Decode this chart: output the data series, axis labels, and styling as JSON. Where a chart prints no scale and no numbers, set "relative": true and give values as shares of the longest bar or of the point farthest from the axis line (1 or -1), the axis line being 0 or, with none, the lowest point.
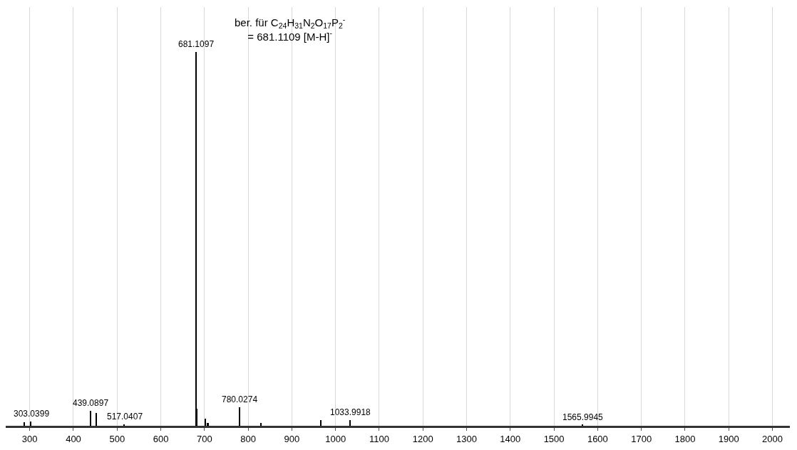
{
  "chart_data": {
    "type": "bar",
    "relative": true,
    "annotations": [
      "ber. für C$_{24}$H$_{31}$N$_{2}$O$_{17}$P$_{2}$$^{-}$\n= 681.1109 [M-H]$^{-}$",
      {
        "text": "303.0399",
        "x": 303.0399,
        "y": 0.012
      },
      {
        "text": "439.0897",
        "x": 439.0897,
        "y": 0.04
      },
      {
        "text": "517.0407",
        "x": 517.0407,
        "y": 0.004
      },
      {
        "text": "681.1097",
        "x": 681.1097,
        "y": 1
      },
      {
        "text": "780.0274",
        "x": 780.0274,
        "y": 0.05
      },
      {
        "text": "1033.9918",
        "x": 1033.9918,
        "y": 0.015
      },
      {
        "text": "1565.9945",
        "x": 1565.9945,
        "y": 0.002
      }
    ],
    "x": [
      288,
      303.0399,
      439.0897,
      453,
      517.0407,
      681.1097,
      682.1,
      703,
      708,
      780.0274,
      830,
      966,
      1033.9918,
      1565.9945
    ],
    "values": [
      0.01,
      0.012,
      0.04,
      0.035,
      0.004,
      1,
      0.046,
      0.02,
      0.008,
      0.05,
      0.008,
      0.016,
      0.015,
      0.002
    ],
    "color": "#000000",
    "xlim": [
      245,
      2040
    ],
    "xticks": [
      300,
      400,
      500,
      600,
      700,
      800,
      900,
      1000,
      1100,
      1200,
      1300,
      1400,
      1500,
      1600,
      1700,
      1800,
      1900,
      2000
    ],
    "grid": "x",
    "legend": false
  }
}
